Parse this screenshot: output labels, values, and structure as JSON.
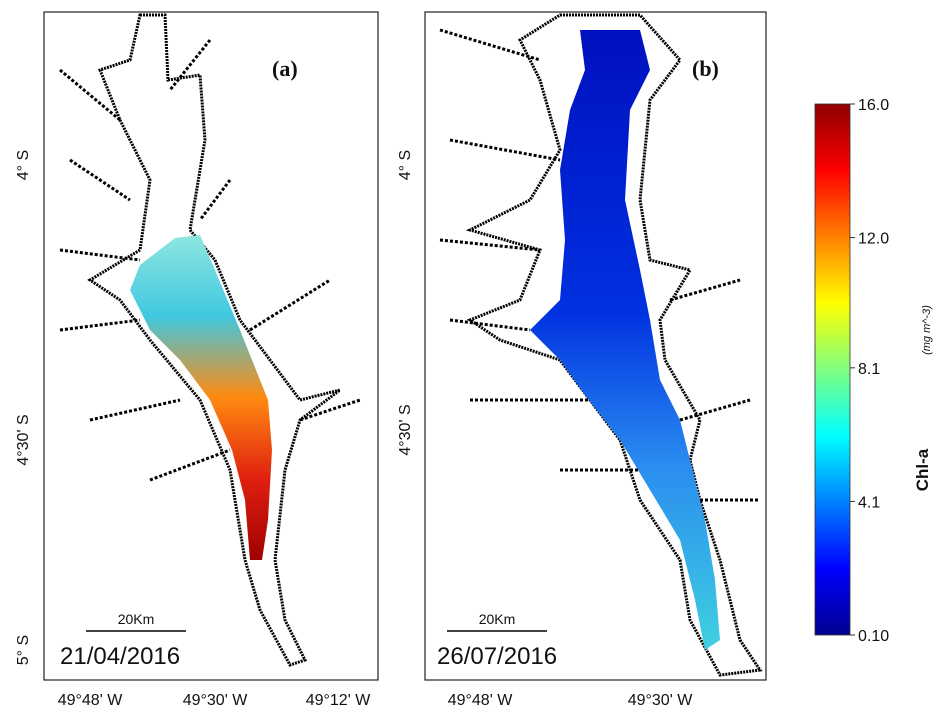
{
  "panels": [
    {
      "label": "(a)",
      "date": "21/04/2016",
      "scale_bar": "20Km",
      "lat_labels": [
        "4° S",
        "4°30' S",
        "5° S"
      ],
      "lon_labels": [
        "49°48' W",
        "49°30' W",
        "49°12' W"
      ]
    },
    {
      "label": "(b)",
      "date": "26/07/2016",
      "scale_bar": "20Km",
      "lat_labels": [
        "4° S",
        "4°30' S"
      ],
      "lon_labels": [
        "49°48' W",
        "49°30' W"
      ]
    }
  ],
  "colorbar": {
    "title": "Chl-a",
    "units": "(mg m^-3)",
    "ticks": [
      {
        "value": 16,
        "label": "16.0"
      },
      {
        "value": 12,
        "label": "12.0"
      },
      8.1,
      4.1,
      {
        "value": 0.1,
        "label": "0.10"
      }
    ]
  }
}
